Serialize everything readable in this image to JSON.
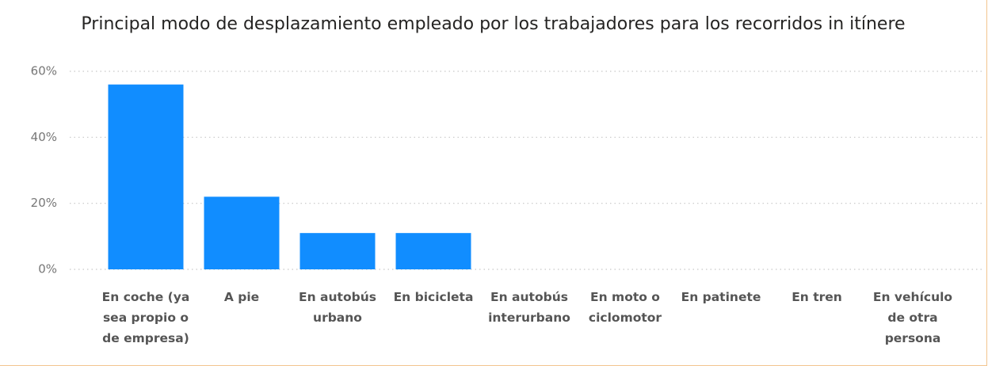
{
  "chart_data": {
    "type": "bar",
    "title": "Principal modo de desplazamiento empleado por los trabajadores para los recorridos in itínere",
    "categories": [
      "En coche (ya sea propio o de empresa)",
      "A pie",
      "En autobús urbano",
      "En bicicleta",
      "En autobús interurbano",
      "En moto o ciclomotor",
      "En patinete",
      "En tren",
      "En vehículo de otra persona"
    ],
    "values": [
      56,
      22,
      11,
      11,
      0,
      0,
      0,
      0,
      0
    ],
    "color": "#118dff",
    "ylim": [
      0,
      60
    ],
    "yticks": [
      {
        "value": 0,
        "label": "0%"
      },
      {
        "value": 20,
        "label": "20%"
      },
      {
        "value": 40,
        "label": "40%"
      },
      {
        "value": 60,
        "label": "60%"
      }
    ],
    "grid": true
  }
}
